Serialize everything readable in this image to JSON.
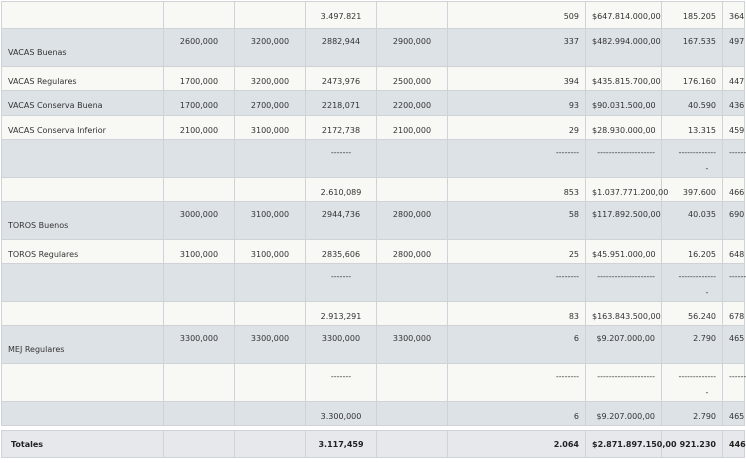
{
  "rows": [
    {
      "style": "light",
      "h": 27,
      "label": "",
      "c1": "",
      "c2": "",
      "c3": "3.497.821",
      "c4": "",
      "c5": "509",
      "c6": "$647.814.000,00",
      "c7": "185.205",
      "c8": "364"
    },
    {
      "style": "dark",
      "h": 38,
      "label": "VACAS Buenas",
      "c1": "2600,000",
      "c2": "3200,000",
      "c3": "2882,944",
      "c4": "2900,000",
      "c5": "337",
      "c6": "$482.994.000,00",
      "c7": "167.535",
      "c8": "497"
    },
    {
      "style": "light",
      "h": 24,
      "label": "VACAS Regulares",
      "c1": "1700,000",
      "c2": "3200,000",
      "c3": "2473,976",
      "c4": "2500,000",
      "c5": "394",
      "c6": "$435.815.700,00",
      "c7": "176.160",
      "c8": "447"
    },
    {
      "style": "dark",
      "h": 25,
      "label": "VACAS Conserva Buena",
      "c1": "1700,000",
      "c2": "2700,000",
      "c3": "2218,071",
      "c4": "2200,000",
      "c5": "93",
      "c6": "$90.031.500,00",
      "c7": "40.590",
      "c8": "436"
    },
    {
      "style": "light",
      "h": 24,
      "label": "VACAS Conserva Inferior",
      "c1": "2100,000",
      "c2": "3100,000",
      "c3": "2172,738",
      "c4": "2100,000",
      "c5": "29",
      "c6": "$28.930.000,00",
      "c7": "13.315",
      "c8": "459"
    },
    {
      "style": "dark",
      "h": 38,
      "label": "",
      "c1": "",
      "c2": "",
      "c3": "-------",
      "c4": "",
      "c5": "--------",
      "c6": "--------------------",
      "c7": "-------------",
      "c8": "------",
      "dash": true
    },
    {
      "style": "light",
      "h": 24,
      "label": "",
      "c1": "",
      "c2": "",
      "c3": "2.610,089",
      "c4": "",
      "c5": "853",
      "c6": "$1.037.771.200,00",
      "c7": "397.600",
      "c8": "466"
    },
    {
      "style": "dark",
      "h": 38,
      "label": "TOROS Buenos",
      "c1": "3000,000",
      "c2": "3100,000",
      "c3": "2944,736",
      "c4": "2800,000",
      "c5": "58",
      "c6": "$117.892.500,00",
      "c7": "40.035",
      "c8": "690"
    },
    {
      "style": "light",
      "h": 24,
      "label": "TOROS Regulares",
      "c1": "3100,000",
      "c2": "3100,000",
      "c3": "2835,606",
      "c4": "2800,000",
      "c5": "25",
      "c6": "$45.951.000,00",
      "c7": "16.205",
      "c8": "648"
    },
    {
      "style": "dark",
      "h": 38,
      "label": "",
      "c1": "",
      "c2": "",
      "c3": "-------",
      "c4": "",
      "c5": "--------",
      "c6": "--------------------",
      "c7": "-------------",
      "c8": "------",
      "dash": true
    },
    {
      "style": "light",
      "h": 24,
      "label": "",
      "c1": "",
      "c2": "",
      "c3": "2.913,291",
      "c4": "",
      "c5": "83",
      "c6": "$163.843.500,00",
      "c7": "56.240",
      "c8": "678"
    },
    {
      "style": "dark",
      "h": 38,
      "label": "MEJ Regulares",
      "c1": "3300,000",
      "c2": "3300,000",
      "c3": "3300,000",
      "c4": "3300,000",
      "c5": "6",
      "c6": "$9.207.000,00",
      "c7": "2.790",
      "c8": "465"
    },
    {
      "style": "light",
      "h": 38,
      "label": "",
      "c1": "",
      "c2": "",
      "c3": "-------",
      "c4": "",
      "c5": "--------",
      "c6": "--------------------",
      "c7": "-------------",
      "c8": "------",
      "dash": true
    },
    {
      "style": "dark",
      "h": 24,
      "label": "",
      "c1": "",
      "c2": "",
      "c3": "3.300,000",
      "c4": "",
      "c5": "6",
      "c6": "$9.207.000,00",
      "c7": "2.790",
      "c8": "465"
    }
  ],
  "totals": {
    "label": "Totales",
    "c3": "3.117,459",
    "c5": "2.064",
    "c6": "$2.871.897.150,00",
    "c7": "921.230",
    "c8": "446"
  },
  "dash_extra": "-"
}
